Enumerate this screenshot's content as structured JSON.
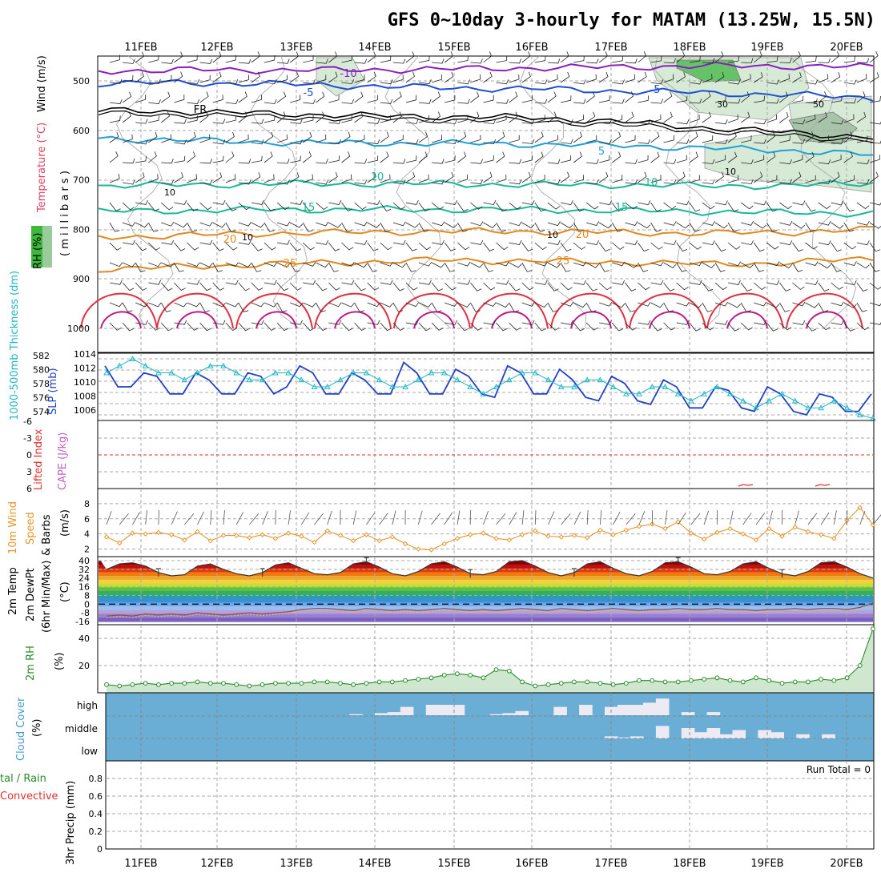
{
  "title": "GFS 0~10day 3-hourly for MATAM (13.25W, 15.5N)",
  "dates": [
    "11FEB",
    "12FEB",
    "13FEB",
    "14FEB",
    "15FEB",
    "16FEB",
    "17FEB",
    "18FEB",
    "19FEB",
    "20FEB"
  ],
  "colors": {
    "rh": "#3cb83c",
    "temp_warm": "#e08a1e",
    "temp_hot": "#e03040",
    "temp_very_hot": "#c0188a",
    "temp_cold": "#2050d0",
    "temp_colder": "#8a20c0",
    "temp_cool": "#20a0d8",
    "temp_mild": "#18b898",
    "slp": "#2040c8",
    "thickness": "#20b8c8",
    "wind10m": "#e8962a",
    "dewpt": "#8a5050",
    "rh2m": "#2a8a2a",
    "cloud": "#6aaed6",
    "cloud_light": "#eeeaf4",
    "lifted": "#e03030",
    "cape": "#c060c0"
  },
  "panel_upper": {
    "ylabels": [
      "W",
      "i",
      "n",
      "d",
      "(",
      "m",
      "/",
      "s",
      ")"
    ],
    "label_rh": "RH (%)",
    "label_temp": "Temperature (°C)",
    "label_wind": "Wind (m/s)",
    "label_mb": "( m i l l i b a r s )",
    "levels": [
      "500",
      "600",
      "700",
      "800",
      "900",
      "1000"
    ],
    "contours": [
      {
        "text": "-10",
        "color_key": "temp_colder"
      },
      {
        "text": "-5",
        "color_key": "temp_cold"
      },
      {
        "text": "-5",
        "color_key": "temp_cold"
      },
      {
        "text": "FR",
        "color_key": "black"
      },
      {
        "text": "5",
        "color_key": "temp_cool"
      },
      {
        "text": "10",
        "color_key": "temp_mild"
      },
      {
        "text": "10",
        "color_key": "temp_mild"
      },
      {
        "text": "15",
        "color_key": "temp_mild"
      },
      {
        "text": "15",
        "color_key": "temp_mild"
      },
      {
        "text": "20",
        "color_key": "temp_warm"
      },
      {
        "text": "20",
        "color_key": "temp_warm"
      },
      {
        "text": "25",
        "color_key": "temp_warm"
      },
      {
        "text": "25",
        "color_key": "temp_warm"
      }
    ],
    "rh_labels": [
      "30",
      "50",
      "10",
      "10",
      "10",
      "10"
    ]
  },
  "panel_slp": {
    "label_thk": "1000-500mb Thickness (dm)",
    "label_slp": "SLP (mb)",
    "left_ticks": [
      "582",
      "580",
      "578",
      "576",
      "574"
    ],
    "right_ticks": [
      "1014",
      "1012",
      "1010",
      "1008",
      "1006"
    ]
  },
  "panel_li": {
    "label_li": "Lifted Index",
    "label_cape": "CAPE (J/kg)",
    "ticks": [
      "-6",
      "-3",
      "0",
      "3",
      "6"
    ]
  },
  "panel_wind10": {
    "label_a": "10m Wind",
    "label_b": "Speed",
    "label_c": "& Barbs",
    "label_d": "(m/s)",
    "ticks": [
      "8",
      "6",
      "4",
      "2"
    ]
  },
  "panel_temp2m": {
    "label_a": "2m Temp",
    "label_b": "2m DewPt",
    "label_c": "(6hr Min/Max)",
    "label_d": "(°C)",
    "ticks": [
      "40",
      "32",
      "24",
      "16",
      "8",
      "0",
      "-8",
      "-16"
    ]
  },
  "panel_rh2m": {
    "label_a": "2m RH",
    "label_b": "(%)",
    "ticks": [
      "40",
      "20"
    ]
  },
  "panel_cloud": {
    "label_a": "Cloud Cover",
    "label_b": "(%)",
    "rows": [
      "high",
      "middle",
      "low"
    ]
  },
  "panel_precip": {
    "label_a": "tal / Rain",
    "label_b": "Convective",
    "label_c": "3hr Precip (mm)",
    "ticks": [
      "0.8",
      "0.6",
      "0.4",
      "0.2",
      "0"
    ],
    "run_total": "Run Total = 0"
  },
  "chart_data": [
    {
      "type": "line",
      "title": "GFS 0~10day 3-hourly for MATAM (13.25W, 15.5N)",
      "xlabel": "",
      "ylabel": "millibars",
      "x": [
        "11FEB",
        "12FEB",
        "13FEB",
        "14FEB",
        "15FEB",
        "16FEB",
        "17FEB",
        "18FEB",
        "19FEB",
        "20FEB"
      ],
      "ylim": [
        1000,
        450
      ],
      "series": [
        {
          "name": "-10",
          "values": [
            480,
            478,
            478,
            478,
            476,
            474,
            472,
            470,
            470,
            472
          ]
        },
        {
          "name": "-5",
          "values": [
            505,
            504,
            506,
            510,
            514,
            516,
            520,
            524,
            528,
            534
          ]
        },
        {
          "name": "FR",
          "values": [
            560,
            562,
            566,
            570,
            572,
            574,
            582,
            594,
            604,
            614
          ]
        },
        {
          "name": "5",
          "values": [
            616,
            620,
            624,
            626,
            626,
            628,
            630,
            636,
            640,
            650
          ]
        },
        {
          "name": "10",
          "values": [
            712,
            710,
            708,
            708,
            708,
            710,
            710,
            712,
            712,
            706
          ]
        },
        {
          "name": "15",
          "values": [
            764,
            762,
            760,
            760,
            760,
            760,
            762,
            764,
            766,
            768
          ]
        },
        {
          "name": "20",
          "values": [
            816,
            812,
            808,
            806,
            804,
            804,
            806,
            808,
            806,
            800
          ]
        },
        {
          "name": "25",
          "values": [
            880,
            876,
            870,
            866,
            862,
            864,
            866,
            870,
            868,
            858
          ]
        }
      ]
    },
    {
      "type": "line",
      "title": "",
      "xlabel": "",
      "ylabel": "1000-500mb Thickness (dm) / SLP (mb)",
      "series": [
        {
          "name": "SLP (mb)",
          "ylim": [
            1005.5,
            1014
          ],
          "values": [
            1013,
            1010,
            1010,
            1012,
            1011.5,
            1009,
            1009,
            1012,
            1011,
            1009,
            1009,
            1012,
            1011.5,
            1009,
            1010,
            1013,
            1012,
            1009,
            1009,
            1012,
            1011,
            1009,
            1009,
            1013.5,
            1012,
            1009,
            1009,
            1012.5,
            1011.5,
            1009,
            1008.5,
            1013,
            1012,
            1009,
            1009,
            1012.5,
            1011,
            1008.5,
            1008,
            1011.5,
            1010.5,
            1008,
            1007.5,
            1011,
            1010,
            1007,
            1007,
            1010,
            1009.5,
            1007,
            1006.5,
            1010,
            1009,
            1006.5,
            1006,
            1009,
            1008.5,
            1006.5,
            1006.5,
            1009
          ]
        },
        {
          "name": "Thickness (dm)",
          "ylim": [
            573.5,
            582
          ],
          "values": [
            580,
            581,
            582,
            581,
            580,
            580,
            579,
            580,
            581,
            581,
            580,
            579,
            579,
            580,
            580,
            579,
            578,
            578,
            579,
            580,
            580,
            579,
            578,
            578,
            579,
            580,
            580,
            579,
            578,
            577,
            578,
            579,
            580,
            580,
            579,
            578,
            578,
            579,
            579,
            578,
            577,
            577,
            578,
            578,
            577,
            576,
            577,
            578,
            577,
            576,
            575,
            576,
            577,
            576,
            575,
            575,
            576,
            575,
            574,
            573.5
          ]
        }
      ]
    },
    {
      "type": "line",
      "title": "",
      "xlabel": "",
      "ylabel": "(m/s)",
      "ylim": [
        1,
        9
      ],
      "series": [
        {
          "name": "10m Wind Speed",
          "values": [
            3.6,
            2.8,
            4.1,
            4,
            4.2,
            3.9,
            3.2,
            4.3,
            3.1,
            3.8,
            3.8,
            3.5,
            3.9,
            3.4,
            4.1,
            3.7,
            2.9,
            4.4,
            3.8,
            3.1,
            3.9,
            3.1,
            3.6,
            2.7,
            2,
            1.9,
            2.7,
            3.4,
            3.9,
            4.1,
            3.4,
            3.2,
            3.9,
            4.4,
            3.7,
            3.6,
            3.8,
            3.5,
            4.5,
            3.9,
            4.5,
            5,
            5.3,
            4.7,
            5.6,
            4.1,
            3.3,
            4.2,
            4.7,
            4,
            3.2,
            4.7,
            3.7,
            4.9,
            4.3,
            3.9,
            3.4,
            5.8,
            7.5,
            5.2
          ]
        }
      ]
    },
    {
      "type": "line",
      "title": "",
      "xlabel": "",
      "ylabel": "(°C)",
      "ylim": [
        -17,
        44
      ],
      "series": [
        {
          "name": "2m Temp",
          "values": [
            32,
            37,
            38,
            35,
            29,
            26,
            27,
            35,
            37,
            32,
            28,
            26,
            29,
            36,
            38,
            33,
            28,
            27,
            29,
            37,
            39,
            34,
            28,
            26,
            30,
            37,
            39,
            34,
            28,
            27,
            30,
            39,
            40,
            35,
            29,
            26,
            29,
            37,
            39,
            33,
            28,
            26,
            30,
            38,
            39,
            34,
            28,
            27,
            30,
            37,
            39,
            33,
            28,
            26,
            30,
            38,
            39,
            34,
            28,
            24
          ]
        },
        {
          "name": "2m DewPt",
          "values": [
            -11,
            -10,
            -11,
            -9,
            -10,
            -9,
            -10,
            -8,
            -9,
            -10,
            -9,
            -8,
            -9,
            -8,
            -7,
            -5,
            -4,
            -4,
            -5,
            -6,
            -4,
            -5,
            -6,
            -5,
            -6,
            -5,
            -4,
            -5,
            -6,
            -5,
            -6,
            -5,
            -4,
            -5,
            -6,
            -4,
            -5,
            -6,
            -5,
            -4,
            -5,
            -6,
            -5,
            -5,
            -4,
            -5,
            -5,
            -4,
            -5,
            -5,
            -6,
            -5,
            -5,
            -4,
            -5,
            -4,
            -4,
            -5,
            -3,
            1
          ]
        }
      ]
    },
    {
      "type": "area",
      "title": "",
      "xlabel": "",
      "ylabel": "(%)",
      "ylim": [
        0,
        50
      ],
      "series": [
        {
          "name": "2m RH",
          "values": [
            6,
            5,
            6,
            7,
            6,
            7,
            7,
            8,
            7,
            7,
            6,
            5,
            6,
            7,
            7,
            7,
            8,
            8,
            7,
            6,
            7,
            8,
            8,
            9,
            10,
            11,
            13,
            14,
            13,
            11,
            17,
            16,
            8,
            5,
            6,
            7,
            8,
            8,
            7,
            6,
            7,
            9,
            9,
            8,
            8,
            9,
            10,
            11,
            9,
            8,
            11,
            9,
            7,
            8,
            8,
            10,
            9,
            11,
            20,
            47
          ]
        }
      ]
    },
    {
      "type": "heatmap",
      "title": "",
      "xlabel": "",
      "ylabel": "Cloud Cover (%)",
      "series": [
        {
          "name": "high",
          "values": [
            0,
            0,
            0,
            0,
            0,
            0,
            0,
            0,
            0,
            0,
            0,
            0,
            0,
            0,
            0,
            0,
            0,
            0,
            0,
            5,
            0,
            10,
            15,
            40,
            0,
            50,
            50,
            50,
            0,
            0,
            5,
            10,
            20,
            0,
            0,
            40,
            0,
            50,
            0,
            40,
            50,
            50,
            60,
            80,
            0,
            15,
            0,
            15,
            0,
            0,
            0,
            0,
            0,
            0,
            0,
            0,
            0,
            0,
            0,
            0
          ]
        },
        {
          "name": "middle",
          "values": [
            0,
            0,
            0,
            0,
            0,
            0,
            0,
            0,
            0,
            0,
            0,
            0,
            0,
            0,
            0,
            0,
            0,
            0,
            0,
            0,
            0,
            0,
            0,
            0,
            0,
            0,
            0,
            0,
            0,
            0,
            0,
            0,
            0,
            0,
            0,
            0,
            0,
            0,
            0,
            10,
            5,
            10,
            0,
            60,
            0,
            50,
            30,
            50,
            20,
            40,
            0,
            40,
            30,
            0,
            20,
            0,
            20,
            0,
            0,
            0
          ]
        },
        {
          "name": "low",
          "values": [
            0,
            0,
            0,
            0,
            0,
            0,
            0,
            0,
            0,
            0,
            0,
            0,
            0,
            0,
            0,
            0,
            0,
            0,
            0,
            0,
            0,
            0,
            0,
            0,
            0,
            0,
            0,
            0,
            0,
            0,
            0,
            0,
            0,
            0,
            0,
            0,
            0,
            0,
            0,
            0,
            0,
            0,
            0,
            0,
            0,
            0,
            0,
            0,
            0,
            0,
            0,
            0,
            0,
            0,
            0,
            0,
            0,
            0,
            0,
            0
          ]
        }
      ]
    },
    {
      "type": "bar",
      "title": "",
      "xlabel": "",
      "ylabel": "3hr Precip (mm)",
      "ylim": [
        0,
        1
      ],
      "series": [
        {
          "name": "Total / Rain",
          "values": []
        },
        {
          "name": "Convective",
          "values": []
        }
      ]
    }
  ]
}
